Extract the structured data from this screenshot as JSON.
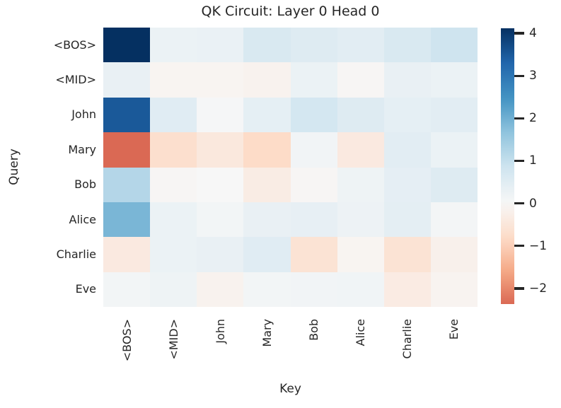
{
  "figure": {
    "background": "#ffffff",
    "text_color": "#262626"
  },
  "chart_data": {
    "type": "heatmap",
    "title": "QK Circuit: Layer 0 Head 0",
    "xlabel": "Key",
    "ylabel": "Query",
    "x_categories": [
      "<BOS>",
      "<MID>",
      "John",
      "Mary",
      "Bob",
      "Alice",
      "Charlie",
      "Eve"
    ],
    "y_categories": [
      "<BOS>",
      "<MID>",
      "John",
      "Mary",
      "Bob",
      "Alice",
      "Charlie",
      "Eve"
    ],
    "values": [
      [
        4.12,
        0.25,
        0.28,
        0.65,
        0.55,
        0.45,
        0.65,
        0.85
      ],
      [
        0.3,
        -0.1,
        -0.1,
        -0.15,
        0.25,
        -0.05,
        0.3,
        0.25
      ],
      [
        3.5,
        0.5,
        0.05,
        0.38,
        0.75,
        0.55,
        0.38,
        0.45
      ],
      [
        -2.37,
        -0.7,
        -0.45,
        -0.8,
        0.12,
        -0.4,
        0.45,
        0.25
      ],
      [
        1.2,
        -0.05,
        0.0,
        -0.33,
        -0.05,
        0.2,
        0.4,
        0.55
      ],
      [
        1.9,
        0.25,
        0.1,
        0.3,
        0.35,
        0.22,
        0.42,
        0.08
      ],
      [
        -0.4,
        0.25,
        0.3,
        0.5,
        -0.6,
        -0.1,
        -0.6,
        -0.2
      ],
      [
        0.1,
        0.2,
        -0.15,
        0.1,
        0.12,
        0.15,
        -0.35,
        -0.12
      ]
    ],
    "vmin": -2.37,
    "vmax": 4.12,
    "center": 0,
    "colormap": "RdBu",
    "colormap_anchors": [
      "#67001f",
      "#b2182b",
      "#d6604d",
      "#f4a582",
      "#fddbc7",
      "#f7f7f7",
      "#d1e5f0",
      "#92c5de",
      "#4393c3",
      "#2166ac",
      "#053061"
    ],
    "colorbar_ticks": [
      4,
      3,
      2,
      1,
      0,
      -1,
      -2
    ],
    "colorbar_tick_labels": [
      "4",
      "3",
      "2",
      "1",
      "0",
      "−1",
      "−2"
    ],
    "colorbar_position": "right",
    "grid": false,
    "cell_borders": false
  }
}
